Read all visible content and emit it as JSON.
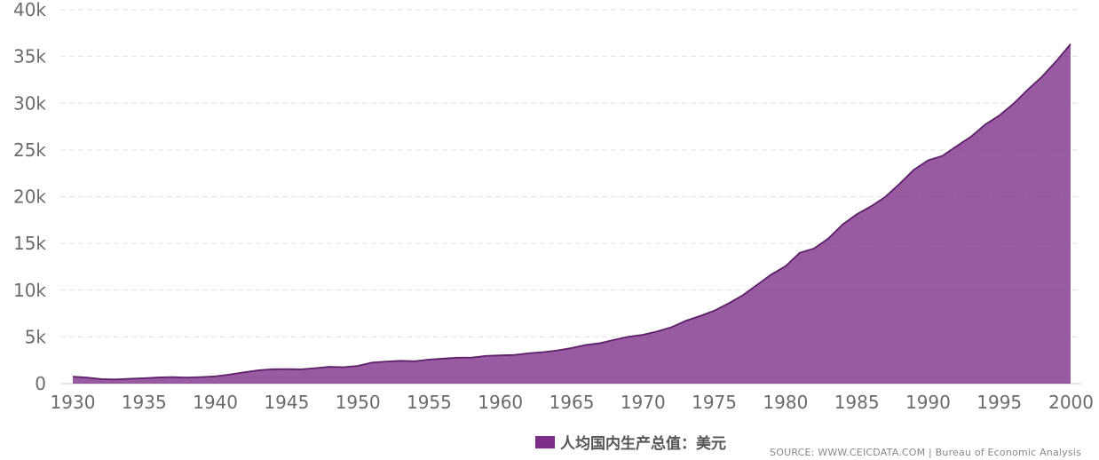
{
  "chart_data": {
    "type": "area",
    "title": "",
    "xlabel": "",
    "ylabel": "",
    "xlim": [
      1930,
      2000
    ],
    "ylim": [
      0,
      40000
    ],
    "y_ticks": [
      0,
      5000,
      10000,
      15000,
      20000,
      25000,
      30000,
      35000,
      40000
    ],
    "y_tick_labels": [
      "0",
      "5k",
      "10k",
      "15k",
      "20k",
      "25k",
      "30k",
      "35k",
      "40k"
    ],
    "x_ticks": [
      1930,
      1935,
      1940,
      1945,
      1950,
      1955,
      1960,
      1965,
      1970,
      1975,
      1980,
      1985,
      1990,
      1995,
      2000
    ],
    "x_tick_labels": [
      "1930",
      "1935",
      "1940",
      "1945",
      "1950",
      "1955",
      "1960",
      "1965",
      "1970",
      "1975",
      "1980",
      "1985",
      "1990",
      "1995",
      "2000"
    ],
    "grid": true,
    "legend_position": "bottom-center",
    "series": [
      {
        "name": "人均国内生产总值：美元",
        "color": "#7b2d87",
        "x": [
          1930,
          1931,
          1932,
          1933,
          1934,
          1935,
          1936,
          1937,
          1938,
          1939,
          1940,
          1941,
          1942,
          1943,
          1944,
          1945,
          1946,
          1947,
          1948,
          1949,
          1950,
          1951,
          1952,
          1953,
          1954,
          1955,
          1956,
          1957,
          1958,
          1959,
          1960,
          1961,
          1962,
          1963,
          1964,
          1965,
          1966,
          1967,
          1968,
          1969,
          1970,
          1971,
          1972,
          1973,
          1974,
          1975,
          1976,
          1977,
          1978,
          1979,
          1980,
          1981,
          1982,
          1983,
          1984,
          1985,
          1986,
          1987,
          1988,
          1989,
          1990,
          1991,
          1992,
          1993,
          1994,
          1995,
          1996,
          1997,
          1998,
          1999,
          2000
        ],
        "values": [
          750,
          650,
          480,
          450,
          520,
          580,
          660,
          700,
          650,
          700,
          780,
          970,
          1210,
          1420,
          1540,
          1550,
          1530,
          1650,
          1800,
          1760,
          1900,
          2260,
          2360,
          2440,
          2400,
          2580,
          2680,
          2780,
          2790,
          2970,
          3020,
          3070,
          3250,
          3370,
          3550,
          3810,
          4140,
          4330,
          4690,
          5020,
          5220,
          5580,
          6040,
          6720,
          7230,
          7800,
          8580,
          9450,
          10560,
          11670,
          12560,
          14000,
          14460,
          15520,
          17020,
          18120,
          18970,
          19980,
          21380,
          22880,
          23890,
          24360,
          25400,
          26410,
          27710,
          28690,
          29960,
          31460,
          32850,
          34510,
          36330
        ]
      }
    ],
    "source_text": "SOURCE: WWW.CEICDATA.COM | Bureau of Economic Analysis"
  }
}
